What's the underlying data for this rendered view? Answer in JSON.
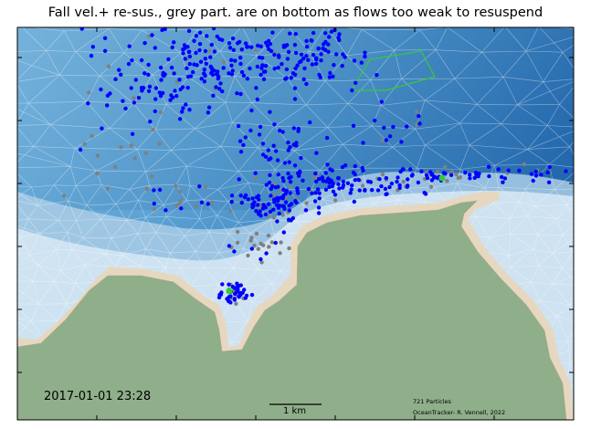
{
  "title": "Fall vel.+  re-sus., grey part. are on bottom as flows too weak to resuspend",
  "timestamp": "2017-01-01 23:28",
  "scale_bar_label": "1 km",
  "particle_count_label": "721 Particles",
  "credit": "OceanTracker- R. Vennell, 2022",
  "colors": {
    "deep_water": "#1a5ea6",
    "mid_water": "#5aa0d0",
    "shallow_water": "#d6e6f2",
    "land": "#8fae8a",
    "sand": "#e6d8c0",
    "active_particle": "#0000ff",
    "stranded_particle": "#808080",
    "release_marker": "#33cc33",
    "polygon_outline": "#33cc33",
    "mesh_lines": "#ffffff"
  },
  "icons": [
    "scale-bar-icon",
    "release-point-icon"
  ]
}
